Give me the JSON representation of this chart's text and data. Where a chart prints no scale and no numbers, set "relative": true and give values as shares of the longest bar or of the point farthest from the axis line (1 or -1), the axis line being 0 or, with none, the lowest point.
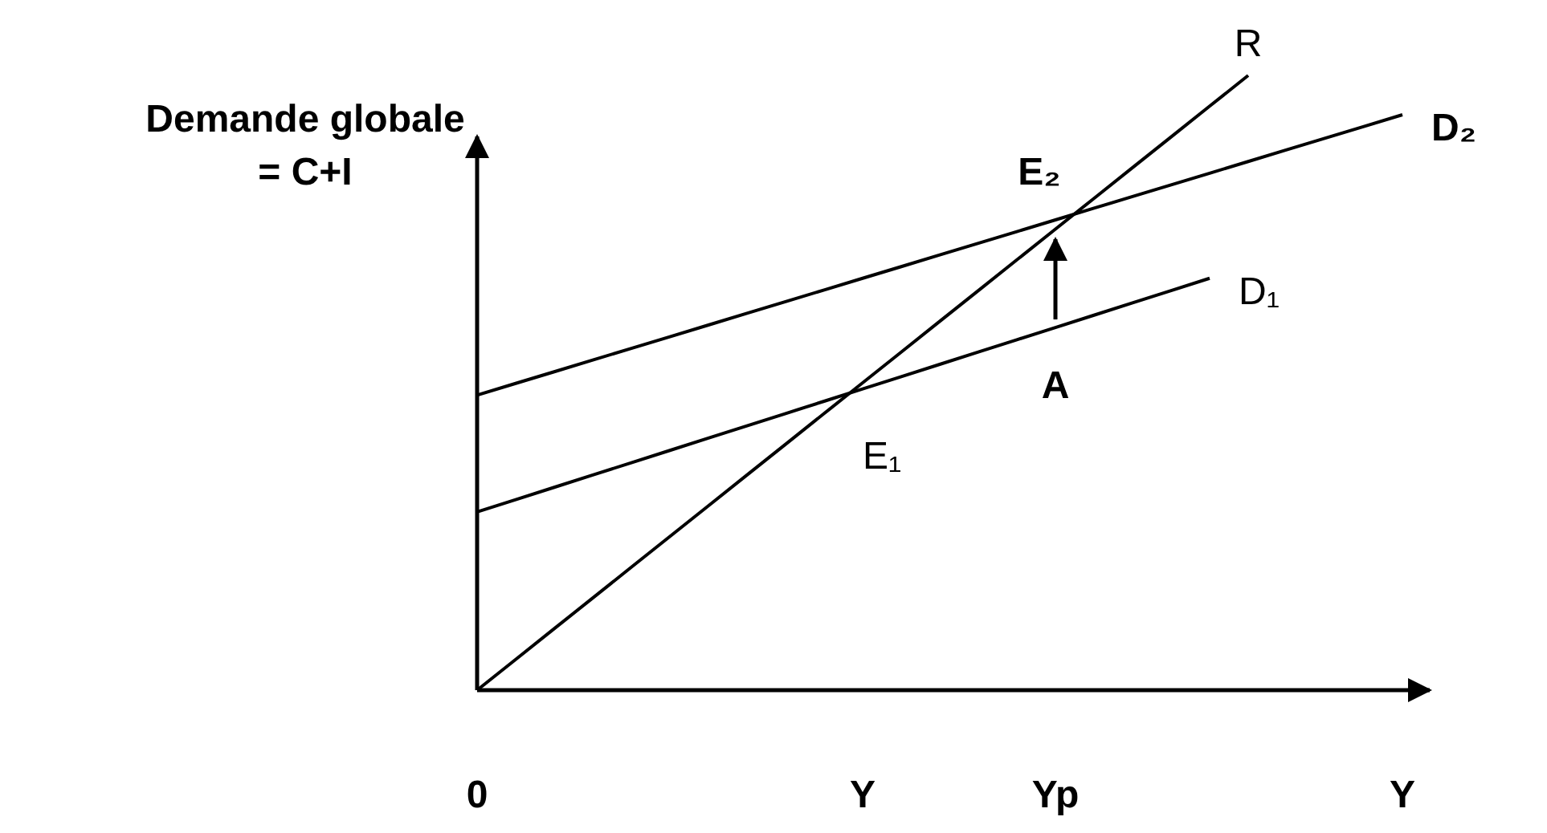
{
  "chart_data": {
    "type": "line",
    "relative": true,
    "ylabel": "Demande globale\n= C+I",
    "legend": false,
    "categories": [
      "0",
      null,
      null,
      null,
      null,
      null,
      null,
      null,
      null,
      null,
      "Y",
      null,
      null,
      null,
      null,
      "Yp",
      null,
      null,
      null,
      null,
      null,
      null,
      null,
      null,
      "Y"
    ],
    "series": [
      {
        "name": "R",
        "color": "#000000",
        "values": [
          0,
          0.05,
          0.1,
          0.15,
          0.2,
          0.25,
          0.3,
          0.35,
          0.4,
          0.45,
          0.5,
          0.55,
          0.6,
          0.65,
          0.7,
          0.75,
          0.8,
          0.85,
          0.9,
          0.95,
          1,
          null,
          null,
          null,
          null
        ]
      },
      {
        "name": "D₁",
        "color": "#000000",
        "values": [
          0.29,
          0.31,
          0.33,
          0.35,
          0.37,
          0.39,
          0.41,
          0.43,
          0.45,
          0.47,
          0.49,
          0.51,
          0.53,
          0.55,
          0.57,
          0.59,
          0.61,
          0.63,
          0.65,
          0.67,
          null,
          null,
          null,
          null,
          null
        ]
      },
      {
        "name": "D₂",
        "color": "#000000",
        "values": [
          0.48,
          0.499,
          0.518,
          0.537,
          0.556,
          0.575,
          0.594,
          0.613,
          0.632,
          0.651,
          0.67,
          0.689,
          0.708,
          0.727,
          0.746,
          0.765,
          0.784,
          0.803,
          0.822,
          0.841,
          0.86,
          0.879,
          0.898,
          0.917,
          0.936
        ]
      }
    ],
    "annotations": [
      {
        "text": "E₁",
        "x": "Y",
        "y": 0.48
      },
      {
        "text": "E₂",
        "x": "Yp",
        "y": 0.765
      },
      {
        "text": "A",
        "x": "Yp",
        "y": 0.59
      }
    ]
  }
}
